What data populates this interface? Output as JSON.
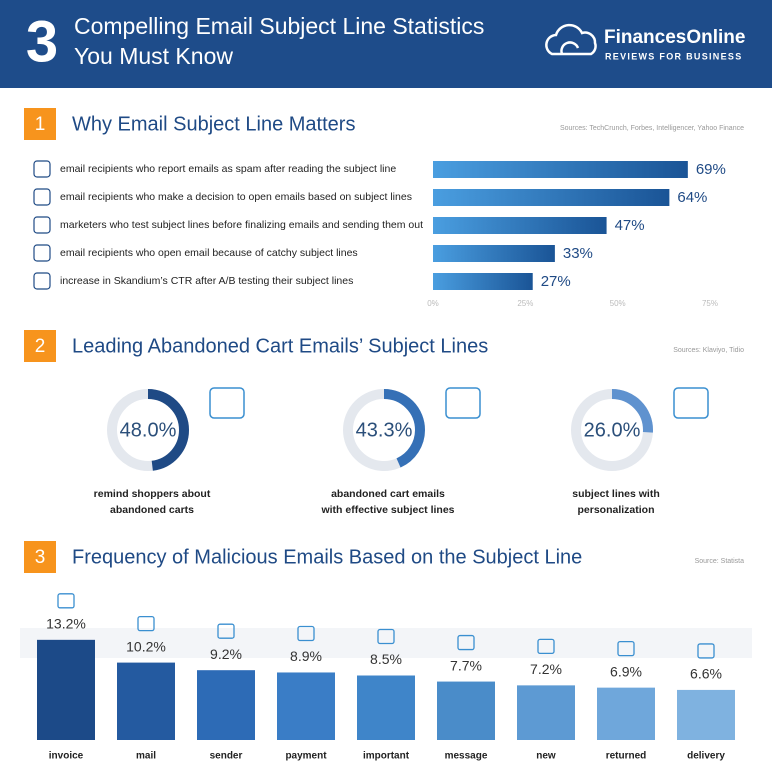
{
  "header": {
    "number": "3",
    "title_lines": [
      "Compelling Email Subject Line Statistics",
      "You Must Know"
    ],
    "logo": "FinancesOnline",
    "tagline": "REVIEWS FOR BUSINESS"
  },
  "chart_data": [
    {
      "type": "hbar",
      "number": "1",
      "title": "Why Email Subject Line Matters",
      "sources": "Sources: TechCrunch, Forbes, Intelligencer, Yahoo Finance",
      "categories": [
        "email recipients who report emails as spam after reading the subject line",
        "email recipients who make a decision to open emails based on subject lines",
        "marketers who test subject lines before finalizing emails and sending them out",
        "email recipients who open email because of catchy subject lines",
        "increase in Skandium’s CTR after A/B testing their subject lines"
      ],
      "values": [
        69,
        64,
        47,
        33,
        27
      ],
      "value_labels": [
        "69%",
        "64%",
        "47%",
        "33%",
        "27%"
      ],
      "color": "#1a5496",
      "xlim": [
        0,
        75
      ],
      "xticks": [
        {
          "value": 0,
          "label": "0%"
        },
        {
          "value": 25,
          "label": "25%"
        },
        {
          "value": 50,
          "label": "50%"
        },
        {
          "value": 75,
          "label": "75%"
        }
      ]
    },
    {
      "type": "donut",
      "number": "2",
      "title": "Leading Abandoned Cart Emails’ Subject Lines",
      "sources": "Sources: Klaviyo, Tidio",
      "categories": [
        [
          "remind shoppers about",
          "abandoned carts"
        ],
        [
          "abandoned cart emails",
          "with effective subject lines"
        ],
        [
          "subject lines with",
          "personalization"
        ]
      ],
      "values": [
        48,
        43.3,
        26
      ],
      "value_labels": [
        "48.0%",
        "43.3%",
        "26.0%"
      ],
      "colors": [
        "#1f4a85",
        "#3570b6",
        "#5f92cf"
      ]
    },
    {
      "type": "bar",
      "number": "3",
      "title": "Frequency of Malicious Emails Based on the Subject Line",
      "sources": "Source: Statista",
      "categories": [
        "invoice",
        "mail",
        "sender",
        "payment",
        "important",
        "message",
        "new",
        "returned",
        "delivery"
      ],
      "values": [
        13.2,
        10.2,
        9.2,
        8.9,
        8.5,
        7.7,
        7.2,
        6.9,
        6.6
      ],
      "value_labels": [
        "13.2%",
        "10.2%",
        "9.2%",
        "8.9%",
        "8.5%",
        "7.7%",
        "7.2%",
        "6.9%",
        "6.6%"
      ],
      "colors": [
        "#1c4a88",
        "#245aa0",
        "#2d6bb6",
        "#3a7dc6",
        "#3f85c9",
        "#4a8cc9",
        "#5d9ad3",
        "#6fa7db",
        "#7fb2e0"
      ],
      "ylim": [
        0,
        17
      ]
    }
  ]
}
